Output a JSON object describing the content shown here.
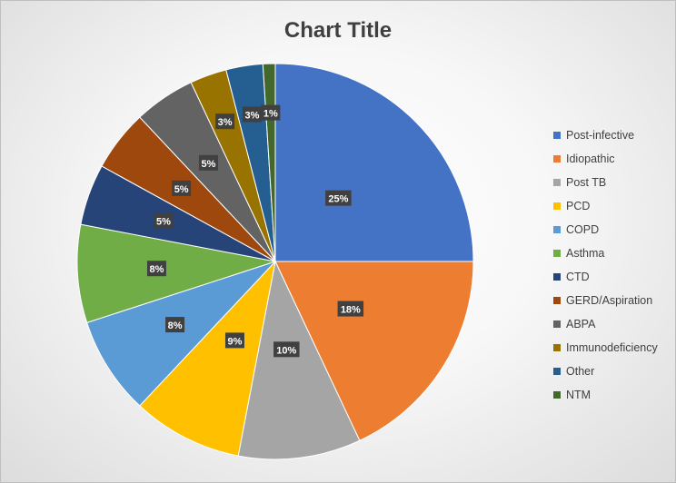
{
  "chart_data": {
    "type": "pie",
    "title": "Chart Title",
    "categories": [
      "Post-infective",
      "Idiopathic",
      "Post TB",
      "PCD",
      "COPD",
      "Asthma",
      "CTD",
      "GERD/Aspiration",
      "ABPA",
      "Immunodeficiency",
      "Other",
      "NTM"
    ],
    "values": [
      25,
      18,
      10,
      9,
      8,
      8,
      5,
      5,
      5,
      3,
      3,
      1
    ],
    "labels": [
      "25%",
      "18%",
      "10%",
      "9%",
      "8%",
      "8%",
      "5%",
      "5%",
      "5%",
      "3%",
      "3%",
      "1%"
    ],
    "colors": [
      "#4472C4",
      "#ED7D31",
      "#A5A5A5",
      "#FFC000",
      "#5B9BD5",
      "#70AD47",
      "#264478",
      "#9E480E",
      "#636363",
      "#997300",
      "#255E91",
      "#43682B"
    ],
    "legend_position": "right"
  }
}
